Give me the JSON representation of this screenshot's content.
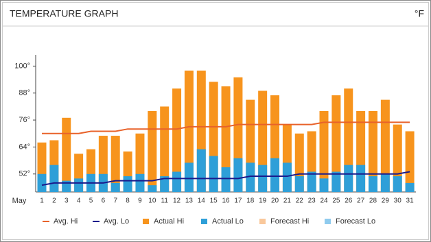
{
  "chart_data": {
    "type": "bar",
    "title": "TEMPERATURE GRAPH",
    "unit": "°F",
    "x_axis_label": "May",
    "categories": [
      "1",
      "2",
      "3",
      "4",
      "5",
      "6",
      "7",
      "8",
      "9",
      "10",
      "11",
      "12",
      "13",
      "14",
      "15",
      "16",
      "17",
      "18",
      "19",
      "20",
      "21",
      "22",
      "23",
      "24",
      "25",
      "26",
      "27",
      "28",
      "29",
      "30",
      "31"
    ],
    "ylim": [
      44,
      105
    ],
    "yticks": [
      {
        "value": 52,
        "label": "52°"
      },
      {
        "value": 64,
        "label": "64°"
      },
      {
        "value": 76,
        "label": "76°"
      },
      {
        "value": 88,
        "label": "88°"
      },
      {
        "value": 100,
        "label": "100°"
      }
    ],
    "grid": false,
    "series": [
      {
        "name": "Avg. Hi",
        "color": "#e8622a",
        "kind": "line",
        "values": [
          70,
          70,
          70,
          70,
          71,
          71,
          71,
          72,
          72,
          72,
          72,
          72,
          73,
          73,
          73,
          73,
          74,
          74,
          74,
          74,
          74,
          74,
          74,
          75,
          75,
          75,
          75,
          75,
          75,
          75,
          75
        ]
      },
      {
        "name": "Avg. Lo",
        "color": "#1a1a8c",
        "kind": "line",
        "values": [
          47,
          48,
          48,
          48,
          48,
          48,
          49,
          49,
          49,
          49,
          50,
          50,
          50,
          50,
          50,
          50,
          50,
          51,
          51,
          51,
          51,
          52,
          52,
          52,
          52,
          52,
          52,
          52,
          52,
          52,
          53
        ]
      },
      {
        "name": "Actual Hi",
        "color": "#f7941d",
        "kind": "bar",
        "values": [
          66,
          67,
          77,
          61,
          63,
          69,
          69,
          62,
          70,
          80,
          82,
          90,
          98,
          98,
          93,
          91,
          95,
          85,
          89,
          87,
          74,
          70,
          71,
          80,
          87,
          90,
          80,
          80,
          85,
          74,
          71
        ]
      },
      {
        "name": "Actual Lo",
        "color": "#2e9fd8",
        "kind": "bar",
        "values": [
          52,
          56,
          49,
          50,
          52,
          52,
          48,
          51,
          52,
          47,
          51,
          53,
          57,
          63,
          60,
          55,
          59,
          57,
          56,
          59,
          57,
          51,
          53,
          50,
          53,
          56,
          56,
          51,
          52,
          51,
          48
        ]
      },
      {
        "name": "Forecast Hi",
        "color": "#f9c89b",
        "kind": "bar",
        "values": [
          null,
          null,
          null,
          null,
          null,
          null,
          null,
          null,
          null,
          null,
          null,
          null,
          null,
          null,
          null,
          null,
          null,
          null,
          null,
          null,
          null,
          null,
          null,
          null,
          null,
          null,
          null,
          null,
          null,
          null,
          null
        ]
      },
      {
        "name": "Forecast Lo",
        "color": "#8fcbee",
        "kind": "bar",
        "values": [
          null,
          null,
          null,
          null,
          null,
          null,
          null,
          null,
          null,
          null,
          null,
          null,
          null,
          null,
          null,
          null,
          null,
          null,
          null,
          null,
          null,
          null,
          null,
          null,
          null,
          null,
          null,
          null,
          null,
          null,
          null
        ]
      }
    ]
  }
}
